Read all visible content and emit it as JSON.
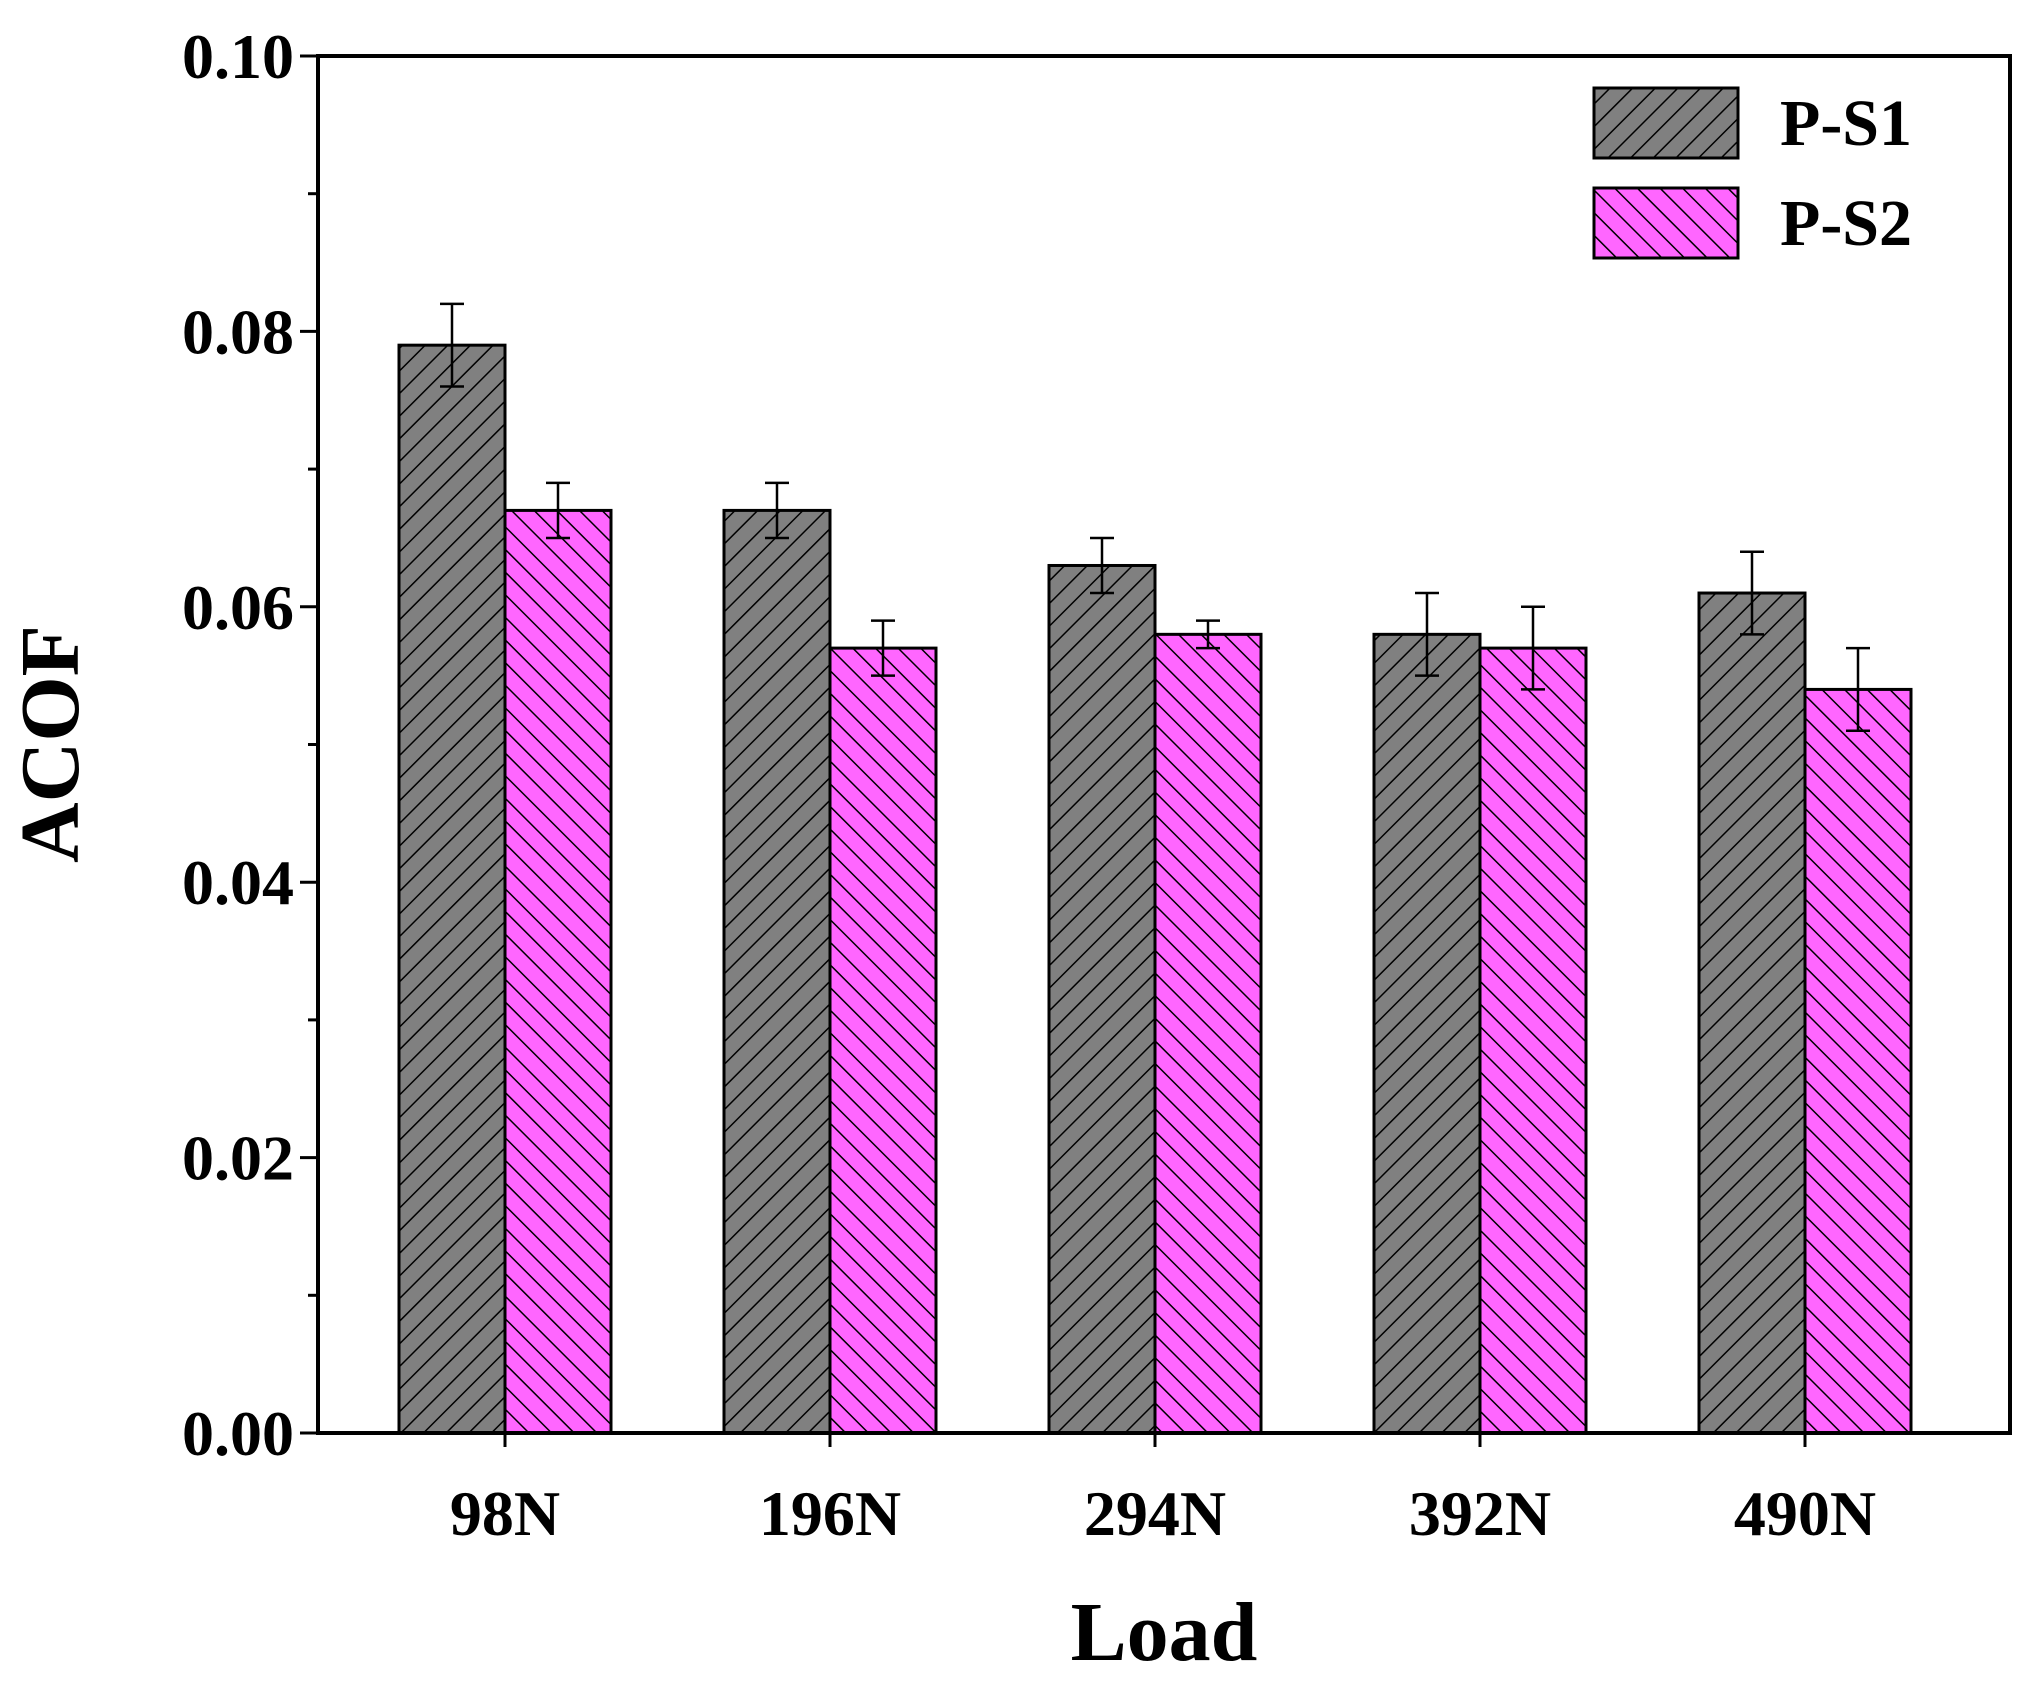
{
  "chart_data": {
    "type": "bar",
    "title": "",
    "xlabel": "Load",
    "ylabel": "ACOF",
    "categories": [
      "98N",
      "196N",
      "294N",
      "392N",
      "490N"
    ],
    "ylim": [
      0,
      0.1
    ],
    "yticks": [
      "0.00",
      "0.02",
      "0.04",
      "0.06",
      "0.08",
      "0.10"
    ],
    "ytick_values": [
      0,
      0.02,
      0.04,
      0.06,
      0.08,
      0.1
    ],
    "legend_position": "top-right",
    "series": [
      {
        "name": "P-S1",
        "color": "#808080",
        "hatch": "forward-diagonal",
        "values": [
          0.079,
          0.067,
          0.063,
          0.058,
          0.061
        ],
        "errors": [
          0.003,
          0.002,
          0.002,
          0.003,
          0.003
        ]
      },
      {
        "name": "P-S2",
        "color": "#ff66ff",
        "hatch": "backward-diagonal",
        "values": [
          0.067,
          0.057,
          0.058,
          0.057,
          0.054
        ],
        "errors": [
          0.002,
          0.002,
          0.001,
          0.003,
          0.003
        ]
      }
    ]
  }
}
